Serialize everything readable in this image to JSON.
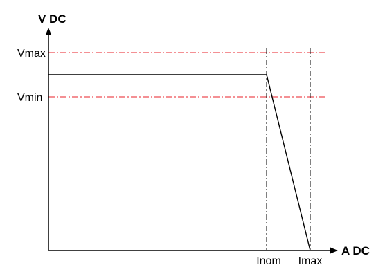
{
  "diagram": {
    "y_axis_title": "V DC",
    "x_axis_title": "A DC",
    "y_levels": [
      {
        "label": "Vmax",
        "color": "#e8202a"
      },
      {
        "label": "Vmin",
        "color": "#e8202a"
      }
    ],
    "x_levels": [
      {
        "label": "Inom"
      },
      {
        "label": "Imax"
      }
    ],
    "curve": "constant voltage then linear drop to zero at Imax"
  }
}
